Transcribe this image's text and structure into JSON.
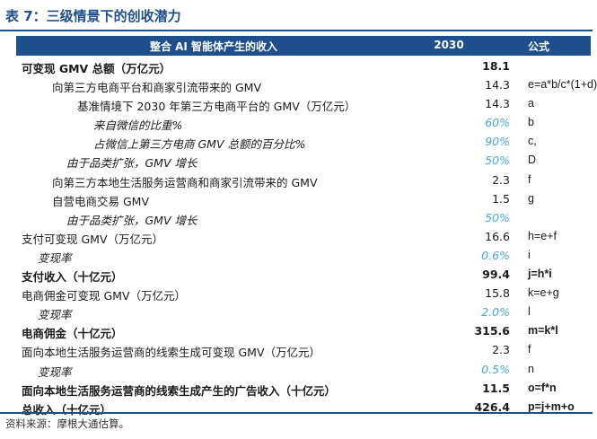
{
  "title": "表 7：三级情景下的创收潜力",
  "header": {
    "label": "整合 AI 智能体产生的收入",
    "year": "2030",
    "formula": "公式"
  },
  "rows": [
    {
      "label": "可变现 GMV 总额（万亿元）",
      "value": "18.1",
      "formula": ""
    },
    {
      "label": "向第三方电商平台和商家引流带来的 GMV",
      "value": "14.3",
      "formula": "e=a*b/c*(1+d)"
    },
    {
      "label": "基准情境下 2030 年第三方电商平台的 GMV（万亿元）",
      "value": "14.3",
      "formula": "a"
    },
    {
      "label": "来自微信的比重%",
      "value": "60%",
      "formula": "b"
    },
    {
      "label": "占微信上第三方电商 GMV 总额的百分比%",
      "value": "90%",
      "formula": "c,"
    },
    {
      "label": "由于品类扩张，GMV 增长",
      "value": "50%",
      "formula": "D"
    },
    {
      "label": "向第三方本地生活服务运营商和商家引流带来的 GMV",
      "value": "2.3",
      "formula": "f"
    },
    {
      "label": "自营电商交易 GMV",
      "value": "1.5",
      "formula": "g"
    },
    {
      "label": "由于品类扩张，GMV 增长",
      "value": "50%",
      "formula": ""
    },
    {
      "label": "支付可变现 GMV（万亿元）",
      "value": "16.6",
      "formula": "h=e+f"
    },
    {
      "label": "变现率",
      "value": "0.6%",
      "formula": "i"
    },
    {
      "label": "支付收入（十亿元）",
      "value": "99.4",
      "formula": "j=h*i"
    },
    {
      "label": "电商佣金可变现 GMV（万亿元）",
      "value": "15.8",
      "formula": "k=e+g"
    },
    {
      "label": "变现率",
      "value": "2.0%",
      "formula": "l"
    },
    {
      "label": "电商佣金（十亿元）",
      "value": "315.6",
      "formula": "m=k*l"
    },
    {
      "label": "面向本地生活服务运营商的线索生成可变现 GMV（万亿元）",
      "value": "2.3",
      "formula": "f"
    },
    {
      "label": "变现率",
      "value": "0.5%",
      "formula": "n"
    },
    {
      "label": "面向本地生活服务运营商的线索生成产生的广告收入（十亿元）",
      "value": "11.5",
      "formula": "o=f*n"
    },
    {
      "label": "总收入（十亿元）",
      "value": "426.4",
      "formula": "p=j+m+o"
    }
  ],
  "source": "资料来源：摩根大通估算。"
}
